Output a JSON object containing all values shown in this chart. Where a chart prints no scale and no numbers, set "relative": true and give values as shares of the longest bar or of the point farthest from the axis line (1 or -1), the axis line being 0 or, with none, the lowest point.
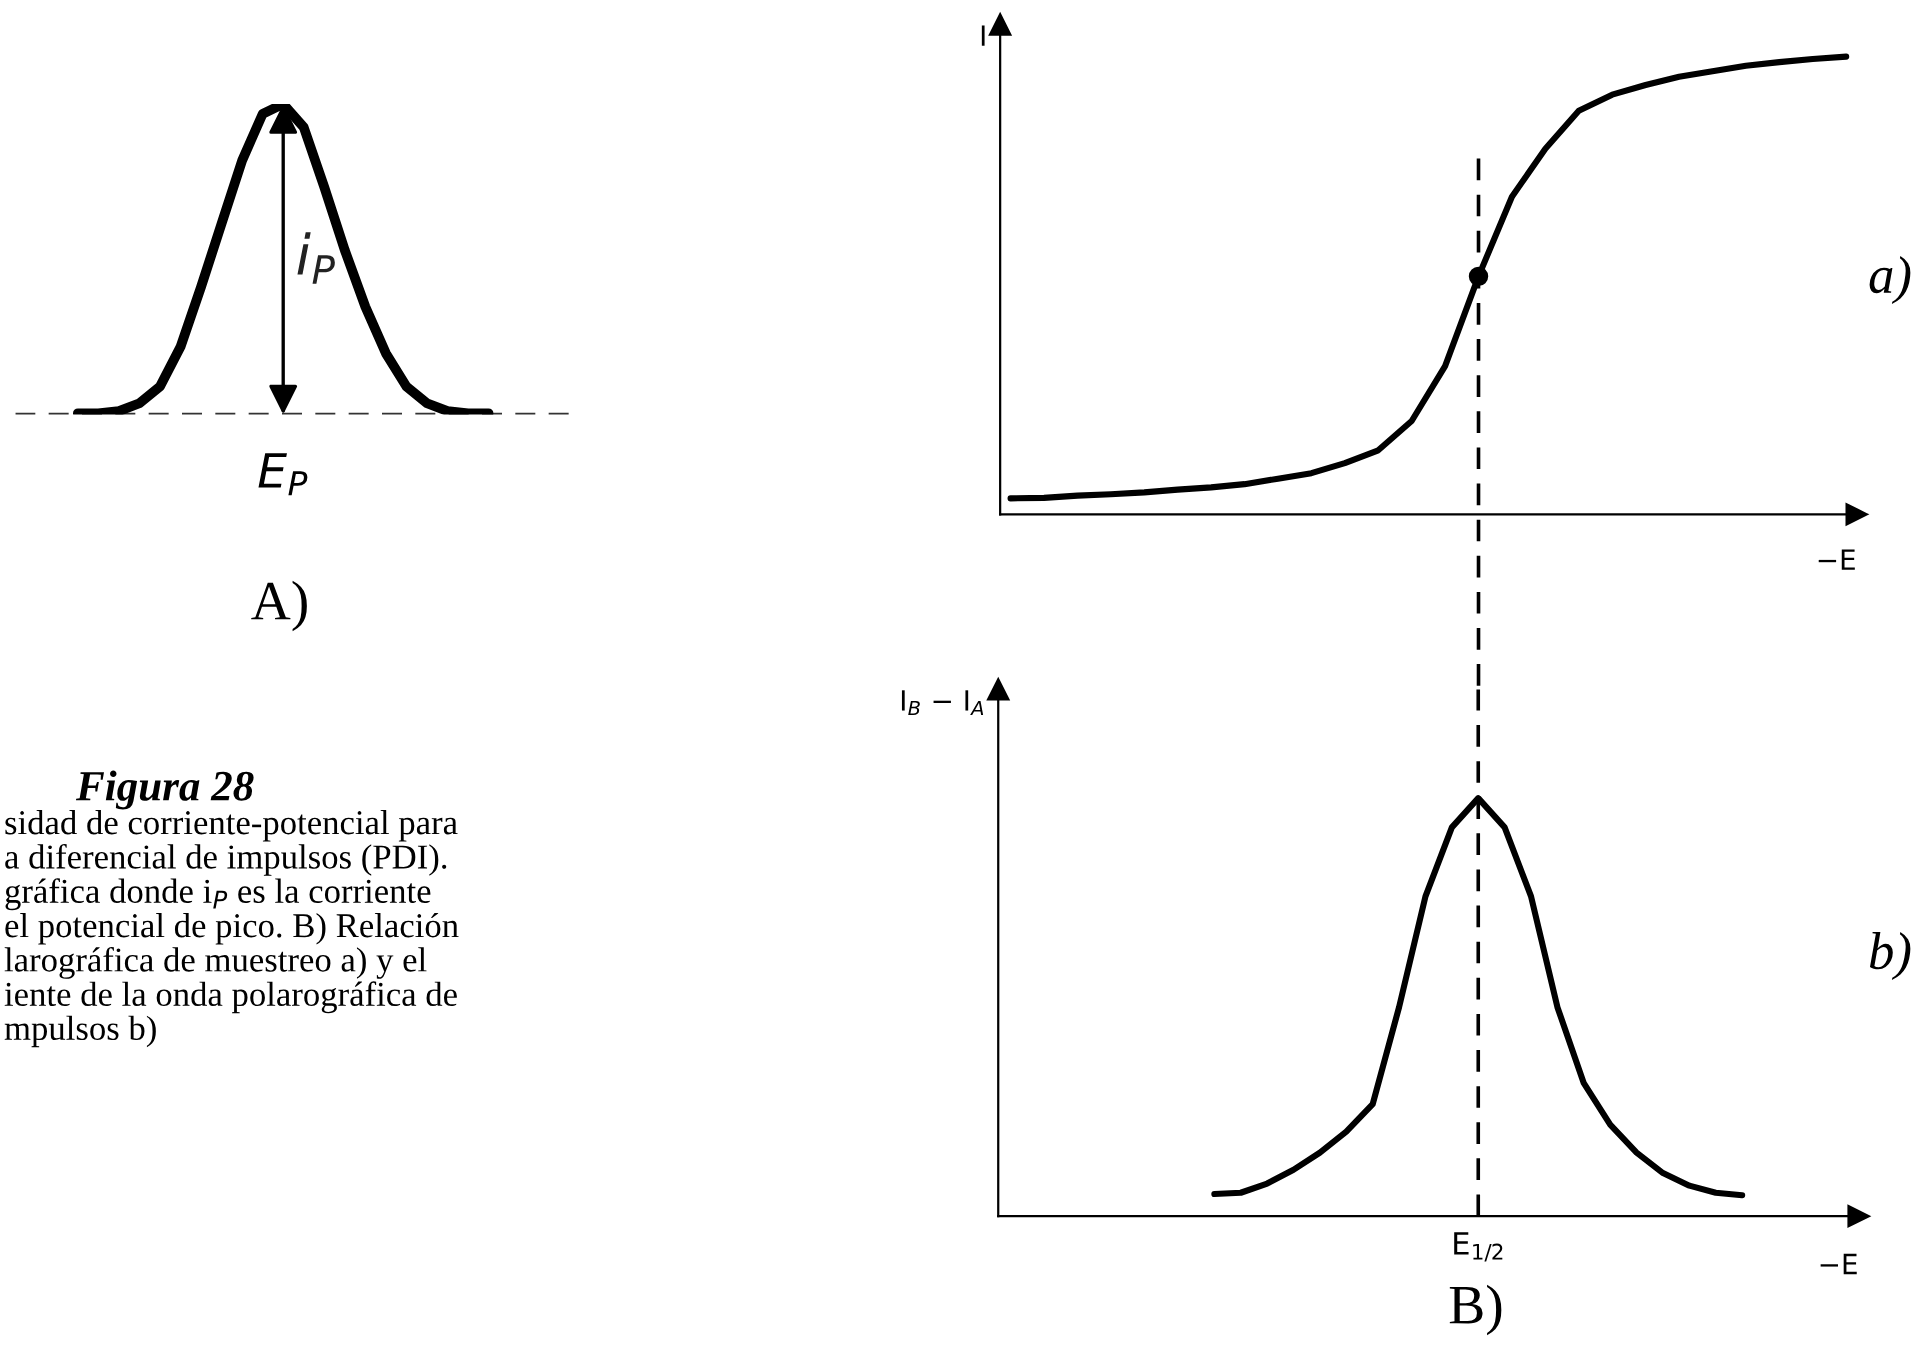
{
  "chart_data": [
    {
      "type": "line",
      "relative": true,
      "categories": [
        null,
        null,
        null,
        null,
        null,
        null,
        null,
        null,
        null,
        null,
        null,
        null,
        null,
        null,
        null,
        null,
        null,
        null,
        null,
        null,
        null
      ],
      "series": [
        {
          "color": "#000000",
          "values": [
            0.004,
            0.004,
            0.011,
            0.036,
            0.09,
            0.218,
            0.411,
            0.615,
            0.818,
            0.968,
            1,
            0.925,
            0.732,
            0.529,
            0.347,
            0.197,
            0.09,
            0.036,
            0.011,
            0.004,
            0.004
          ]
        }
      ],
      "ref_lines": [
        {
          "axis": "y",
          "value": 0,
          "line_style": "dashed",
          "color": "#333333"
        }
      ],
      "annotations": [
        "i$_{P}$",
        "A)",
        "E$_{P}$",
        "Figura 28",
        "sidad de corriente-potencial para\na diferencial de impulsos (PDI).\ngráfica donde i$_{P}$ es la corriente\nel potencial de pico. B) Relación\nlarográfica de muestreo a) y el\niente de la onda polarográfica de\nmpulsos b)"
      ]
    },
    {
      "type": "line",
      "relative": true,
      "ylabel": "I",
      "xlabel": "−E",
      "categories": [
        null,
        null,
        null,
        null,
        null,
        null,
        null,
        null,
        null,
        null,
        null,
        null,
        null,
        null,
        null,
        null,
        null,
        null,
        null,
        null,
        null,
        null,
        null,
        null,
        null,
        null
      ],
      "series": [
        {
          "color": "#000000",
          "values": [
            0.035,
            0.036,
            0.041,
            0.044,
            0.048,
            0.054,
            0.059,
            0.066,
            0.078,
            0.09,
            0.112,
            0.14,
            0.204,
            0.324,
            0.52,
            0.694,
            0.799,
            0.882,
            0.917,
            0.938,
            0.956,
            0.968,
            0.98,
            0.988,
            0.995,
            1
          ]
        }
      ],
      "annotations": [
        "a)"
      ]
    },
    {
      "type": "line",
      "relative": true,
      "ylabel": "I$_{B}$ − I$_{A}$",
      "xlabel": "−E",
      "categories": [
        null,
        null,
        null,
        null,
        null,
        null,
        null,
        null,
        null,
        null,
        null,
        null,
        null,
        null,
        null,
        null,
        null,
        null,
        null,
        null,
        null
      ],
      "series": [
        {
          "color": "#000000",
          "values": [
            0.053,
            0.056,
            0.078,
            0.111,
            0.152,
            0.202,
            0.268,
            0.5,
            0.765,
            0.93,
            1,
            0.93,
            0.765,
            0.5,
            0.318,
            0.219,
            0.152,
            0.103,
            0.073,
            0.056,
            0.05
          ]
        }
      ],
      "annotations": [
        "b)",
        "B)",
        "E$_{1/2}$"
      ]
    }
  ]
}
